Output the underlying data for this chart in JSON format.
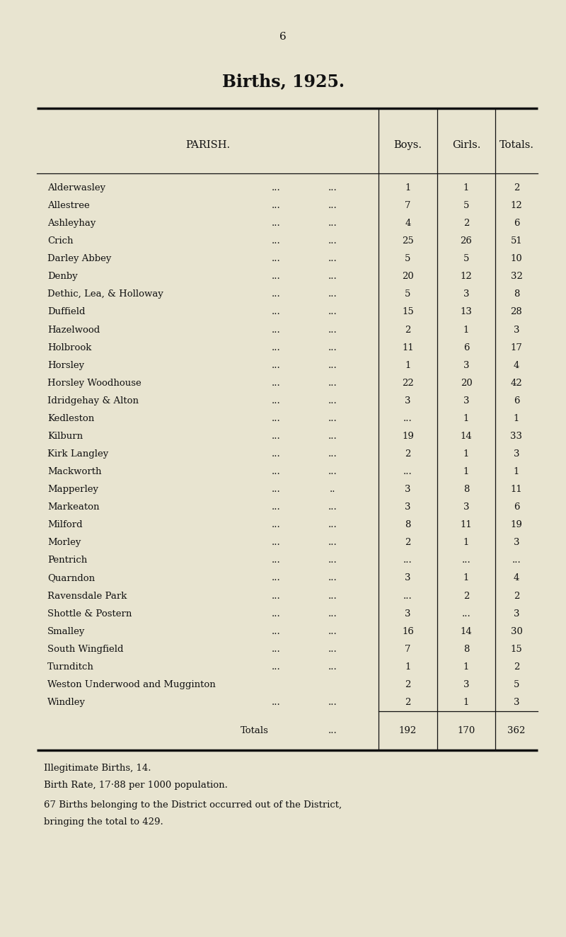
{
  "page_number": "6",
  "title": "Births, 1925.",
  "rows": [
    [
      "Alderwasley",
      "...",
      "...",
      "1",
      "1",
      "2"
    ],
    [
      "Allestree",
      "...",
      "...",
      "7",
      "5",
      "12"
    ],
    [
      "Ashleyhay",
      "...",
      "...",
      "4",
      "2",
      "6"
    ],
    [
      "Crich",
      "...",
      "...",
      "25",
      "26",
      "51"
    ],
    [
      "Darley Abbey",
      "...",
      "...",
      "5",
      "5",
      "10"
    ],
    [
      "Denby",
      "...",
      "...",
      "20",
      "12",
      "32"
    ],
    [
      "Dethic, Lea, & Holloway",
      "...",
      "...",
      "5",
      "3",
      "8"
    ],
    [
      "Duffield",
      "...",
      "...",
      "15",
      "13",
      "28"
    ],
    [
      "Hazelwood",
      "...",
      "...",
      "2",
      "1",
      "3"
    ],
    [
      "Holbrook",
      "...",
      "...",
      "11",
      "6",
      "17"
    ],
    [
      "Horsley",
      "...",
      "...",
      "1",
      "3",
      "4"
    ],
    [
      "Horsley Woodhouse",
      "...",
      "...",
      "22",
      "20",
      "42"
    ],
    [
      "Idridgehay & Alton",
      "...",
      "...",
      "3",
      "3",
      "6"
    ],
    [
      "Kedleston",
      "...",
      "...",
      "...",
      "1",
      "1"
    ],
    [
      "Kilburn",
      "...",
      "...",
      "19",
      "14",
      "33"
    ],
    [
      "Kirk Langley",
      "...",
      "...",
      "2",
      "1",
      "3"
    ],
    [
      "Mackworth",
      "...",
      "...",
      "...",
      "1",
      "1"
    ],
    [
      "Mapperley",
      "...",
      "..",
      "3",
      "8",
      "11"
    ],
    [
      "Markeaton",
      "...",
      "...",
      "3",
      "3",
      "6"
    ],
    [
      "Milford",
      "...",
      "...",
      "8",
      "11",
      "19"
    ],
    [
      "Morley",
      "...",
      "...",
      "2",
      "1",
      "3"
    ],
    [
      "Pentrich",
      "...",
      "...",
      "...",
      "...",
      "..."
    ],
    [
      "Quarndon",
      "...",
      "...",
      "3",
      "1",
      "4"
    ],
    [
      "Ravensdale Park",
      "...",
      "...",
      "...",
      "2",
      "2"
    ],
    [
      "Shottle & Postern",
      "...",
      "...",
      "3",
      "...",
      "3"
    ],
    [
      "Smalley",
      "...",
      "...",
      "16",
      "14",
      "30"
    ],
    [
      "South Wingfield",
      "...",
      "...",
      "7",
      "8",
      "15"
    ],
    [
      "Turnditch",
      "...",
      "...",
      "1",
      "1",
      "2"
    ],
    [
      "Weston Underwood and Mugginton",
      "",
      "",
      "2",
      "3",
      "5"
    ],
    [
      "Windley",
      "...",
      "...",
      "2",
      "1",
      "3"
    ]
  ],
  "totals": [
    "192",
    "170",
    "362"
  ],
  "footnote1": "Illegitimate Births, 14.",
  "footnote2": "Birth Rate, 17·88 per 1000 population.",
  "footnote3": "    67 Births belonging to the District occurred out of the District,",
  "footnote4": "bringing the total to 429.",
  "bg_color": "#e8e4d0",
  "text_color": "#111111",
  "line_color": "#111111"
}
